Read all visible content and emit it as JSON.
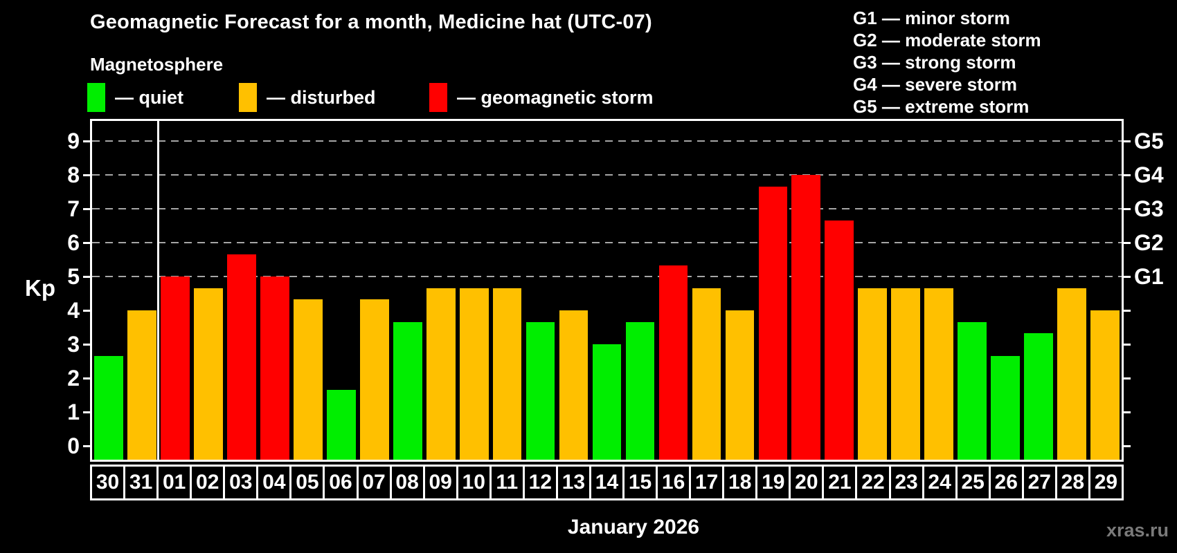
{
  "header": {
    "title": "Geomagnetic Forecast for a month, Medicine hat (UTC-07)",
    "subtitle": "Magnetosphere"
  },
  "legend": {
    "quiet_label": "— quiet",
    "disturbed_label": "— disturbed",
    "storm_label": "— geomagnetic storm"
  },
  "g_legend": [
    "G1 — minor storm",
    "G2 — moderate storm",
    "G3 — strong storm",
    "G4 — severe storm",
    "G5 — extreme storm"
  ],
  "colors": {
    "quiet": "#00ee00",
    "disturbed": "#ffc000",
    "storm": "#ff0000",
    "grid": "#a6a6a6",
    "axis": "#ffffff",
    "watermark": "#7a7a7a"
  },
  "chart_data": {
    "type": "bar",
    "title": "Geomagnetic Forecast for a month, Medicine hat (UTC-07)",
    "ylabel": "Kp",
    "xlabel": "January 2026",
    "ylim": [
      0,
      9
    ],
    "y_domain": [
      -0.4,
      9.6
    ],
    "yticks": [
      0,
      1,
      2,
      3,
      4,
      5,
      6,
      7,
      8,
      9
    ],
    "grid": "dashed horizontal at Kp 5-9 only",
    "legend_position": "top",
    "g_levels": [
      {
        "kp": 5,
        "label": "G1"
      },
      {
        "kp": 6,
        "label": "G2"
      },
      {
        "kp": 7,
        "label": "G3"
      },
      {
        "kp": 8,
        "label": "G4"
      },
      {
        "kp": 9,
        "label": "G5"
      }
    ],
    "month_separator_after_index": 1,
    "days": [
      {
        "day": "30",
        "kp": 2.67,
        "level": "quiet"
      },
      {
        "day": "31",
        "kp": 4.0,
        "level": "disturbed"
      },
      {
        "day": "01",
        "kp": 5.0,
        "level": "storm"
      },
      {
        "day": "02",
        "kp": 4.67,
        "level": "disturbed"
      },
      {
        "day": "03",
        "kp": 5.67,
        "level": "storm"
      },
      {
        "day": "04",
        "kp": 5.0,
        "level": "storm"
      },
      {
        "day": "05",
        "kp": 4.33,
        "level": "disturbed"
      },
      {
        "day": "06",
        "kp": 1.67,
        "level": "quiet"
      },
      {
        "day": "07",
        "kp": 4.33,
        "level": "disturbed"
      },
      {
        "day": "08",
        "kp": 3.67,
        "level": "quiet"
      },
      {
        "day": "09",
        "kp": 4.67,
        "level": "disturbed"
      },
      {
        "day": "10",
        "kp": 4.67,
        "level": "disturbed"
      },
      {
        "day": "11",
        "kp": 4.67,
        "level": "disturbed"
      },
      {
        "day": "12",
        "kp": 3.67,
        "level": "quiet"
      },
      {
        "day": "13",
        "kp": 4.0,
        "level": "disturbed"
      },
      {
        "day": "14",
        "kp": 3.0,
        "level": "quiet"
      },
      {
        "day": "15",
        "kp": 3.67,
        "level": "quiet"
      },
      {
        "day": "16",
        "kp": 5.33,
        "level": "storm"
      },
      {
        "day": "17",
        "kp": 4.67,
        "level": "disturbed"
      },
      {
        "day": "18",
        "kp": 4.0,
        "level": "disturbed"
      },
      {
        "day": "19",
        "kp": 7.67,
        "level": "storm"
      },
      {
        "day": "20",
        "kp": 8.0,
        "level": "storm"
      },
      {
        "day": "21",
        "kp": 6.67,
        "level": "storm"
      },
      {
        "day": "22",
        "kp": 4.67,
        "level": "disturbed"
      },
      {
        "day": "23",
        "kp": 4.67,
        "level": "disturbed"
      },
      {
        "day": "24",
        "kp": 4.67,
        "level": "disturbed"
      },
      {
        "day": "25",
        "kp": 3.67,
        "level": "quiet"
      },
      {
        "day": "26",
        "kp": 2.67,
        "level": "quiet"
      },
      {
        "day": "27",
        "kp": 3.33,
        "level": "quiet"
      },
      {
        "day": "28",
        "kp": 4.67,
        "level": "disturbed"
      },
      {
        "day": "29",
        "kp": 4.0,
        "level": "disturbed"
      }
    ]
  },
  "footer": {
    "month_label": "January 2026",
    "watermark": "xras.ru"
  }
}
